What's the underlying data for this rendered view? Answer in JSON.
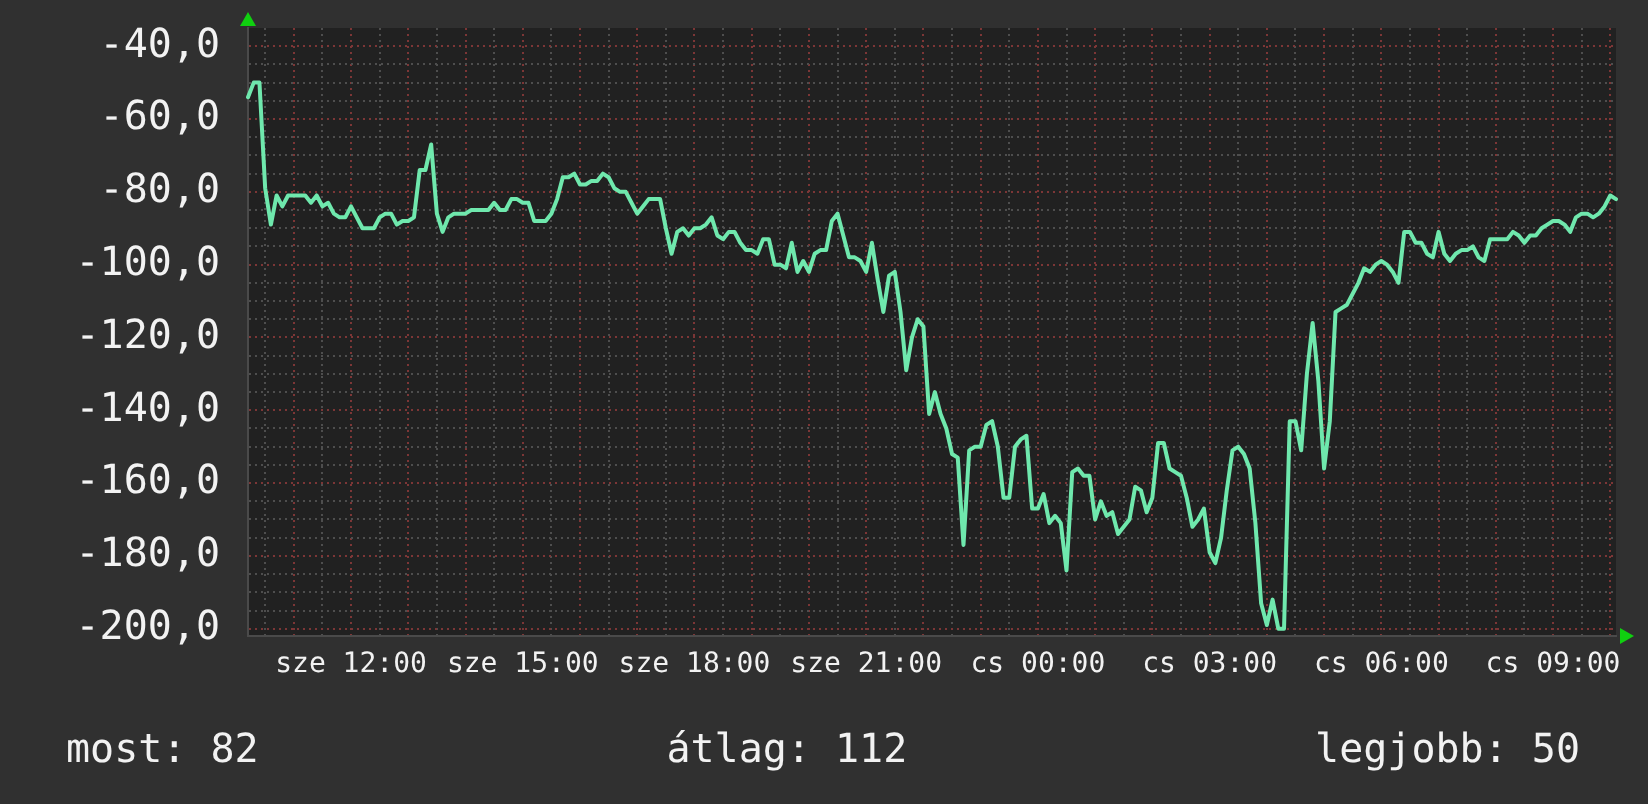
{
  "chart_data": {
    "type": "line",
    "color": "#6fe8ad",
    "categories": [
      null,
      null,
      null,
      null,
      null,
      null,
      null,
      null,
      null,
      null,
      null,
      null,
      null,
      null,
      null,
      null,
      null,
      null,
      "sze 12:00",
      null,
      null,
      null,
      null,
      null,
      null,
      null,
      null,
      null,
      null,
      null,
      null,
      null,
      null,
      null,
      null,
      null,
      null,
      null,
      null,
      null,
      null,
      null,
      null,
      null,
      null,
      null,
      null,
      null,
      "sze 15:00",
      null,
      null,
      null,
      null,
      null,
      null,
      null,
      null,
      null,
      null,
      null,
      null,
      null,
      null,
      null,
      null,
      null,
      null,
      null,
      null,
      null,
      null,
      null,
      null,
      null,
      null,
      null,
      null,
      null,
      "sze 18:00",
      null,
      null,
      null,
      null,
      null,
      null,
      null,
      null,
      null,
      null,
      null,
      null,
      null,
      null,
      null,
      null,
      null,
      null,
      null,
      null,
      null,
      null,
      null,
      null,
      null,
      null,
      null,
      null,
      null,
      "sze 21:00",
      null,
      null,
      null,
      null,
      null,
      null,
      null,
      null,
      null,
      null,
      null,
      null,
      null,
      null,
      null,
      null,
      null,
      null,
      null,
      null,
      null,
      null,
      null,
      null,
      null,
      null,
      null,
      null,
      null,
      "cs 00:00",
      null,
      null,
      null,
      null,
      null,
      null,
      null,
      null,
      null,
      null,
      null,
      null,
      null,
      null,
      null,
      null,
      null,
      null,
      null,
      null,
      null,
      null,
      null,
      null,
      null,
      null,
      null,
      null,
      null,
      "cs 03:00",
      null,
      null,
      null,
      null,
      null,
      null,
      null,
      null,
      null,
      null,
      null,
      null,
      null,
      null,
      null,
      null,
      null,
      null,
      null,
      null,
      null,
      null,
      null,
      null,
      null,
      null,
      null,
      null,
      null,
      "cs 06:00",
      null,
      null,
      null,
      null,
      null,
      null,
      null,
      null,
      null,
      null,
      null,
      null,
      null,
      null,
      null,
      null,
      null,
      null,
      null,
      null,
      null,
      null,
      null,
      null,
      null,
      null,
      null,
      null,
      null,
      "cs 09:00",
      null,
      null,
      null,
      null,
      null,
      null,
      null,
      null,
      null,
      null,
      null
    ],
    "values": [
      -54,
      -50,
      -50,
      -79,
      -89,
      -81,
      -84,
      -81,
      -81,
      -81,
      -81,
      -83,
      -81,
      -84,
      -83,
      -86,
      -87,
      -87,
      -84,
      -87,
      -90,
      -90,
      -90,
      -87,
      -86,
      -86,
      -89,
      -88,
      -88,
      -87,
      -74,
      -74,
      -67,
      -86,
      -91,
      -87,
      -86,
      -86,
      -86,
      -85,
      -85,
      -85,
      -85,
      -83,
      -85,
      -85,
      -82,
      -82,
      -83,
      -83,
      -88,
      -88,
      -88,
      -86,
      -82,
      -76,
      -76,
      -75,
      -78,
      -78,
      -77,
      -77,
      -75,
      -76,
      -79,
      -80,
      -80,
      -83,
      -86,
      -84,
      -82,
      -82,
      -82,
      -90,
      -97,
      -91,
      -90,
      -92,
      -90,
      -90,
      -89,
      -87,
      -92,
      -93,
      -91,
      -91,
      -94,
      -96,
      -96,
      -97,
      -93,
      -93,
      -100,
      -100,
      -101,
      -94,
      -102,
      -99,
      -102,
      -97,
      -96,
      -96,
      -88,
      -86,
      -92,
      -98,
      -98,
      -99,
      -102,
      -94,
      -104,
      -113,
      -103,
      -102,
      -113,
      -129,
      -120,
      -115,
      -117,
      -141,
      -135,
      -141,
      -145,
      -152,
      -153,
      -177,
      -151,
      -150,
      -150,
      -144,
      -143,
      -150,
      -164,
      -164,
      -150,
      -148,
      -147,
      -167,
      -167,
      -163,
      -171,
      -169,
      -171,
      -184,
      -157,
      -156,
      -158,
      -158,
      -170,
      -165,
      -169,
      -168,
      -174,
      -172,
      -170,
      -161,
      -162,
      -168,
      -164,
      -149,
      -149,
      -156,
      -157,
      -158,
      -164,
      -172,
      -170,
      -167,
      -179,
      -182,
      -175,
      -162,
      -151,
      -150,
      -152,
      -156,
      -171,
      -193,
      -199,
      -192,
      -200,
      -200,
      -143,
      -143,
      -151,
      -130,
      -116,
      -132,
      -156,
      -143,
      -113,
      -112,
      -111,
      -108,
      -105,
      -101,
      -102,
      -100,
      -99,
      -100,
      -102,
      -105,
      -91,
      -91,
      -94,
      -94,
      -97,
      -98,
      -91,
      -97,
      -99,
      -97,
      -96,
      -96,
      -95,
      -98,
      -99,
      -93,
      -93,
      -93,
      -93,
      -91,
      -92,
      -94,
      -92,
      -92,
      -90,
      -89,
      -88,
      -88,
      -89,
      -91,
      -87,
      -86,
      -86,
      -87,
      -86,
      -84,
      -81,
      -82
    ],
    "ylim": [
      -202,
      -35
    ],
    "yticks": [
      {
        "value": -200,
        "label": "-200,0"
      },
      {
        "value": -195,
        "label": null
      },
      {
        "value": -190,
        "label": null
      },
      {
        "value": -185,
        "label": null
      },
      {
        "value": -180,
        "label": "-180,0"
      },
      {
        "value": -175,
        "label": null
      },
      {
        "value": -170,
        "label": null
      },
      {
        "value": -165,
        "label": null
      },
      {
        "value": -160,
        "label": "-160,0"
      },
      {
        "value": -155,
        "label": null
      },
      {
        "value": -150,
        "label": null
      },
      {
        "value": -145,
        "label": null
      },
      {
        "value": -140,
        "label": "-140,0"
      },
      {
        "value": -135,
        "label": null
      },
      {
        "value": -130,
        "label": null
      },
      {
        "value": -125,
        "label": null
      },
      {
        "value": -120,
        "label": "-120,0"
      },
      {
        "value": -115,
        "label": null
      },
      {
        "value": -110,
        "label": null
      },
      {
        "value": -105,
        "label": null
      },
      {
        "value": -100,
        "label": "-100,0"
      },
      {
        "value": -95,
        "label": null
      },
      {
        "value": -90,
        "label": null
      },
      {
        "value": -85,
        "label": null
      },
      {
        "value": -80,
        "label": "-80,0"
      },
      {
        "value": -75,
        "label": null
      },
      {
        "value": -70,
        "label": null
      },
      {
        "value": -65,
        "label": null
      },
      {
        "value": -60,
        "label": "-60,0"
      },
      {
        "value": -55,
        "label": null
      },
      {
        "value": -50,
        "label": null
      },
      {
        "value": -45,
        "label": null
      },
      {
        "value": -40,
        "label": "-40,0"
      }
    ],
    "grid": true,
    "annotations": [
      "most: 82",
      "átlag: 112",
      "legjobb: 50"
    ]
  }
}
